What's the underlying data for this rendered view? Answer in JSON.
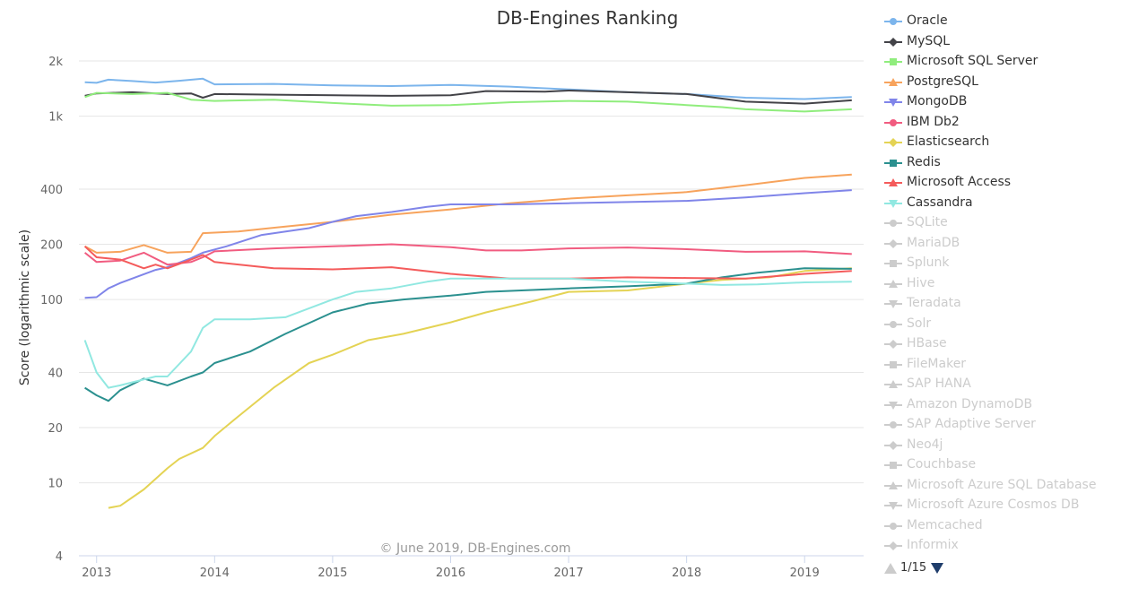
{
  "chart_data": {
    "type": "line",
    "title": "DB-Engines Ranking",
    "ylabel": "Score (logarithmic scale)",
    "y_scale": "log",
    "ylim": [
      4,
      2000
    ],
    "y_ticks": [
      4,
      10,
      20,
      40,
      100,
      200,
      400,
      1000,
      2000
    ],
    "y_tick_labels": [
      "4",
      "10",
      "20",
      "40",
      "100",
      "200",
      "400",
      "1k",
      "2k"
    ],
    "xlim": [
      2012.85,
      2019.5
    ],
    "x_ticks": [
      2013,
      2014,
      2015,
      2016,
      2017,
      2018,
      2019
    ],
    "x_tick_labels": [
      "2013",
      "2014",
      "2015",
      "2016",
      "2017",
      "2018",
      "2019"
    ],
    "credit": "© June 2019, DB-Engines.com",
    "grid": true,
    "legend_position": "right",
    "series": [
      {
        "name": "Oracle",
        "color": "#7cb5ec",
        "marker": "circle",
        "x": [
          2012.9,
          2013.0,
          2013.1,
          2013.3,
          2013.5,
          2013.7,
          2013.9,
          2014.0,
          2014.5,
          2015.0,
          2015.5,
          2016.0,
          2016.5,
          2017.0,
          2017.5,
          2018.0,
          2018.5,
          2019.0,
          2019.4
        ],
        "y": [
          1530,
          1520,
          1580,
          1555,
          1525,
          1560,
          1600,
          1490,
          1500,
          1470,
          1460,
          1480,
          1450,
          1400,
          1350,
          1320,
          1260,
          1240,
          1270
        ]
      },
      {
        "name": "MySQL",
        "color": "#434348",
        "marker": "diamond",
        "x": [
          2012.9,
          2013.0,
          2013.3,
          2013.6,
          2013.8,
          2013.9,
          2014.0,
          2014.5,
          2015.0,
          2015.5,
          2016.0,
          2016.3,
          2016.8,
          2017.0,
          2017.5,
          2018.0,
          2018.5,
          2019.0,
          2019.4
        ],
        "y": [
          1290,
          1330,
          1350,
          1320,
          1330,
          1260,
          1320,
          1310,
          1300,
          1290,
          1300,
          1370,
          1360,
          1380,
          1350,
          1320,
          1200,
          1170,
          1220
        ]
      },
      {
        "name": "Microsoft SQL Server",
        "color": "#90ed7d",
        "marker": "square",
        "x": [
          2012.9,
          2013.0,
          2013.3,
          2013.6,
          2013.8,
          2014.0,
          2014.5,
          2015.0,
          2015.5,
          2016.0,
          2016.5,
          2017.0,
          2017.5,
          2018.0,
          2018.3,
          2018.5,
          2019.0,
          2019.4
        ],
        "y": [
          1270,
          1340,
          1320,
          1340,
          1230,
          1210,
          1230,
          1180,
          1140,
          1150,
          1190,
          1210,
          1200,
          1150,
          1120,
          1090,
          1060,
          1090
        ]
      },
      {
        "name": "PostgreSQL",
        "color": "#f7a35c",
        "marker": "triangle",
        "x": [
          2012.9,
          2013.0,
          2013.2,
          2013.4,
          2013.6,
          2013.8,
          2013.9,
          2014.2,
          2014.6,
          2015.0,
          2015.5,
          2016.0,
          2016.5,
          2017.0,
          2017.5,
          2018.0,
          2018.5,
          2019.0,
          2019.4
        ],
        "y": [
          195,
          180,
          182,
          198,
          180,
          182,
          230,
          235,
          250,
          265,
          290,
          310,
          335,
          355,
          370,
          385,
          420,
          460,
          480
        ]
      },
      {
        "name": "MongoDB",
        "color": "#8085e9",
        "marker": "triangle-down",
        "x": [
          2012.9,
          2013.0,
          2013.1,
          2013.2,
          2013.5,
          2013.6,
          2013.8,
          2013.9,
          2014.1,
          2014.4,
          2014.8,
          2015.0,
          2015.2,
          2015.5,
          2015.8,
          2016.0,
          2016.5,
          2017.0,
          2017.5,
          2018.0,
          2018.5,
          2019.0,
          2019.4
        ],
        "y": [
          102,
          103,
          115,
          123,
          145,
          150,
          168,
          180,
          195,
          225,
          245,
          265,
          285,
          300,
          320,
          330,
          330,
          335,
          340,
          345,
          360,
          380,
          395
        ]
      },
      {
        "name": "IBM Db2",
        "color": "#f15c80",
        "marker": "circle",
        "x": [
          2012.9,
          2013.0,
          2013.2,
          2013.4,
          2013.6,
          2013.8,
          2013.9,
          2014.0,
          2014.5,
          2015.0,
          2015.5,
          2016.0,
          2016.3,
          2016.6,
          2017.0,
          2017.5,
          2018.0,
          2018.5,
          2019.0,
          2019.4
        ],
        "y": [
          180,
          160,
          163,
          180,
          155,
          160,
          170,
          183,
          190,
          195,
          200,
          193,
          185,
          185,
          190,
          192,
          188,
          182,
          183,
          177
        ]
      },
      {
        "name": "Elasticsearch",
        "color": "#e4d354",
        "marker": "diamond",
        "x": [
          2013.1,
          2013.2,
          2013.4,
          2013.6,
          2013.7,
          2013.9,
          2014.0,
          2014.2,
          2014.5,
          2014.8,
          2015.0,
          2015.3,
          2015.6,
          2016.0,
          2016.3,
          2016.7,
          2017.0,
          2017.5,
          2018.0,
          2018.3,
          2018.7,
          2019.0,
          2019.4
        ],
        "y": [
          7.3,
          7.5,
          9.2,
          12,
          13.5,
          15.5,
          18,
          23,
          33,
          45,
          50,
          60,
          65,
          75,
          85,
          98,
          110,
          112,
          122,
          128,
          132,
          143,
          148
        ]
      },
      {
        "name": "Redis",
        "color": "#2b908f",
        "marker": "square",
        "x": [
          2012.9,
          2013.0,
          2013.1,
          2013.2,
          2013.4,
          2013.6,
          2013.8,
          2013.9,
          2014.0,
          2014.3,
          2014.6,
          2015.0,
          2015.3,
          2015.6,
          2016.0,
          2016.3,
          2016.6,
          2017.0,
          2017.5,
          2018.0,
          2018.3,
          2018.6,
          2019.0,
          2019.4
        ],
        "y": [
          33,
          30,
          28,
          32,
          37,
          34,
          38,
          40,
          45,
          52,
          65,
          85,
          95,
          100,
          105,
          110,
          112,
          115,
          118,
          122,
          132,
          140,
          148,
          147
        ]
      },
      {
        "name": "Microsoft Access",
        "color": "#f45b5b",
        "marker": "triangle",
        "x": [
          2012.9,
          2013.0,
          2013.2,
          2013.4,
          2013.5,
          2013.6,
          2013.8,
          2013.9,
          2014.0,
          2014.5,
          2015.0,
          2015.5,
          2016.0,
          2016.5,
          2017.0,
          2017.5,
          2018.0,
          2018.5,
          2019.0,
          2019.4
        ],
        "y": [
          195,
          170,
          165,
          148,
          155,
          148,
          165,
          175,
          160,
          148,
          146,
          150,
          138,
          130,
          130,
          132,
          131,
          130,
          138,
          143
        ]
      },
      {
        "name": "Cassandra",
        "color": "#91e8e1",
        "marker": "triangle-down",
        "x": [
          2012.9,
          2013.0,
          2013.1,
          2013.2,
          2013.5,
          2013.6,
          2013.8,
          2013.9,
          2014.0,
          2014.3,
          2014.6,
          2015.0,
          2015.2,
          2015.5,
          2015.8,
          2016.0,
          2016.5,
          2017.0,
          2017.5,
          2018.0,
          2018.3,
          2018.6,
          2019.0,
          2019.4
        ],
        "y": [
          60,
          40,
          33,
          34,
          38,
          38,
          52,
          70,
          78,
          78,
          80,
          100,
          110,
          115,
          125,
          130,
          130,
          130,
          125,
          122,
          120,
          121,
          124,
          125
        ]
      }
    ]
  },
  "legend": {
    "items": [
      {
        "name": "Oracle",
        "color": "#7cb5ec",
        "marker": "circle",
        "hidden": false
      },
      {
        "name": "MySQL",
        "color": "#434348",
        "marker": "diamond",
        "hidden": false
      },
      {
        "name": "Microsoft SQL Server",
        "color": "#90ed7d",
        "marker": "square",
        "hidden": false
      },
      {
        "name": "PostgreSQL",
        "color": "#f7a35c",
        "marker": "triangle",
        "hidden": false
      },
      {
        "name": "MongoDB",
        "color": "#8085e9",
        "marker": "triangle-down",
        "hidden": false
      },
      {
        "name": "IBM Db2",
        "color": "#f15c80",
        "marker": "circle",
        "hidden": false
      },
      {
        "name": "Elasticsearch",
        "color": "#e4d354",
        "marker": "diamond",
        "hidden": false
      },
      {
        "name": "Redis",
        "color": "#2b908f",
        "marker": "square",
        "hidden": false
      },
      {
        "name": "Microsoft Access",
        "color": "#f45b5b",
        "marker": "triangle",
        "hidden": false
      },
      {
        "name": "Cassandra",
        "color": "#91e8e1",
        "marker": "triangle-down",
        "hidden": false
      },
      {
        "name": "SQLite",
        "color": "#cccccc",
        "marker": "circle",
        "hidden": true
      },
      {
        "name": "MariaDB",
        "color": "#cccccc",
        "marker": "diamond",
        "hidden": true
      },
      {
        "name": "Splunk",
        "color": "#cccccc",
        "marker": "square",
        "hidden": true
      },
      {
        "name": "Hive",
        "color": "#cccccc",
        "marker": "triangle",
        "hidden": true
      },
      {
        "name": "Teradata",
        "color": "#cccccc",
        "marker": "triangle-down",
        "hidden": true
      },
      {
        "name": "Solr",
        "color": "#cccccc",
        "marker": "circle",
        "hidden": true
      },
      {
        "name": "HBase",
        "color": "#cccccc",
        "marker": "diamond",
        "hidden": true
      },
      {
        "name": "FileMaker",
        "color": "#cccccc",
        "marker": "square",
        "hidden": true
      },
      {
        "name": "SAP HANA",
        "color": "#cccccc",
        "marker": "triangle",
        "hidden": true
      },
      {
        "name": "Amazon DynamoDB",
        "color": "#cccccc",
        "marker": "triangle-down",
        "hidden": true
      },
      {
        "name": "SAP Adaptive Server",
        "color": "#cccccc",
        "marker": "circle",
        "hidden": true
      },
      {
        "name": "Neo4j",
        "color": "#cccccc",
        "marker": "diamond",
        "hidden": true
      },
      {
        "name": "Couchbase",
        "color": "#cccccc",
        "marker": "square",
        "hidden": true
      },
      {
        "name": "Microsoft Azure SQL Database",
        "color": "#cccccc",
        "marker": "triangle",
        "hidden": true
      },
      {
        "name": "Microsoft Azure Cosmos DB",
        "color": "#cccccc",
        "marker": "triangle-down",
        "hidden": true
      },
      {
        "name": "Memcached",
        "color": "#cccccc",
        "marker": "circle",
        "hidden": true
      },
      {
        "name": "Informix",
        "color": "#cccccc",
        "marker": "diamond",
        "hidden": true
      }
    ],
    "pager_text": "1/15"
  }
}
